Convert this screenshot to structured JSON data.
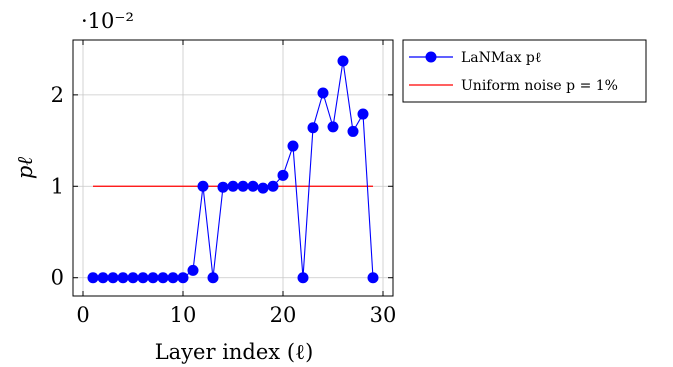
{
  "chart_data": {
    "type": "line",
    "xlabel": "Layer index (ℓ)",
    "ylabel": "pℓ",
    "y_scale_label": "·10⁻²",
    "xlim": [
      -1,
      31
    ],
    "ylim": [
      -0.2,
      2.6
    ],
    "xticks": [
      0,
      10,
      20,
      30
    ],
    "yticks": [
      0,
      1,
      2
    ],
    "ytick_labels": [
      "0",
      "1",
      "2"
    ],
    "grid": true,
    "legend_position": "outside-right-top",
    "series": [
      {
        "name": "LaNMax pℓ",
        "color": "#0000ff",
        "style": "line-markers",
        "x": [
          1,
          2,
          3,
          4,
          5,
          6,
          7,
          8,
          9,
          10,
          11,
          12,
          13,
          14,
          15,
          16,
          17,
          18,
          19,
          20,
          21,
          22,
          23,
          24,
          25,
          26,
          27,
          28,
          29
        ],
        "y": [
          0,
          0,
          0,
          0,
          0,
          0,
          0,
          0,
          0,
          0,
          0.08,
          1.0,
          0,
          0.99,
          1.0,
          1.0,
          1.0,
          0.98,
          1.0,
          1.12,
          1.44,
          0,
          1.64,
          2.02,
          1.65,
          2.37,
          1.6,
          1.79,
          0
        ]
      },
      {
        "name": "Uniform noise p = 1%",
        "color": "#ff0000",
        "style": "line",
        "x": [
          1,
          29
        ],
        "y": [
          1,
          1
        ]
      }
    ]
  }
}
